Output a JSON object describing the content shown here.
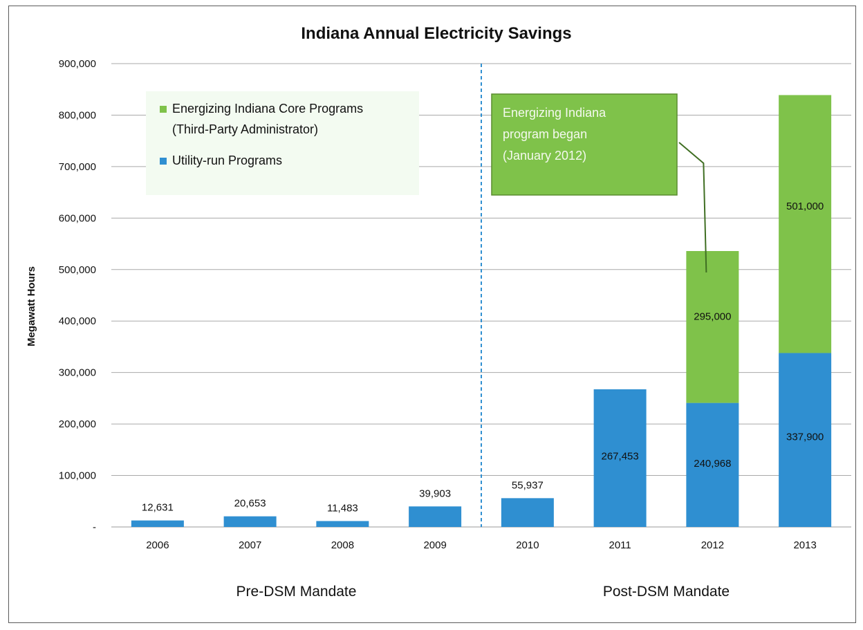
{
  "chart_data": {
    "type": "bar",
    "stacked": true,
    "title": "Indiana Annual Electricity Savings",
    "ylabel": "Megawatt Hours",
    "xlabel": "",
    "ylim": [
      0,
      900000
    ],
    "y_ticks": [
      {
        "value": 0,
        "label": "-"
      },
      {
        "value": 100000,
        "label": "100,000"
      },
      {
        "value": 200000,
        "label": "200,000"
      },
      {
        "value": 300000,
        "label": "300,000"
      },
      {
        "value": 400000,
        "label": "400,000"
      },
      {
        "value": 500000,
        "label": "500,000"
      },
      {
        "value": 600000,
        "label": "600,000"
      },
      {
        "value": 700000,
        "label": "700,000"
      },
      {
        "value": 800000,
        "label": "800,000"
      },
      {
        "value": 900000,
        "label": "900,000"
      }
    ],
    "grid": true,
    "categories": [
      "2006",
      "2007",
      "2008",
      "2009",
      "2010",
      "2011",
      "2012",
      "2013"
    ],
    "series": [
      {
        "name": "Utility-run Programs",
        "color": "#2f8fd1",
        "values": [
          12631,
          20653,
          11483,
          39903,
          55937,
          267453,
          240968,
          337900
        ],
        "labels": [
          "12,631",
          "20,653",
          "11,483",
          "39,903",
          "55,937",
          "267,453",
          "240,968",
          "337,900"
        ]
      },
      {
        "name": "Energizing Indiana Core Programs (Third-Party Administrator)",
        "color": "#7fc24a",
        "values": [
          null,
          null,
          null,
          null,
          null,
          null,
          295000,
          501000
        ],
        "labels": [
          null,
          null,
          null,
          null,
          null,
          null,
          "295,000",
          "501,000"
        ]
      }
    ],
    "legend": {
      "placement": "top-left",
      "items": [
        {
          "line1": "Energizing Indiana Core Programs",
          "line2": "(Third-Party Administrator)",
          "color": "#7fc24a"
        },
        {
          "line1": "Utility-run Programs",
          "line2": "",
          "color": "#2f8fd1"
        }
      ]
    },
    "annotation": {
      "lines": [
        "Energizing Indiana",
        "program began",
        "(January 2012)"
      ],
      "fill": "#7fc24a",
      "text_color": "#f4f9ee",
      "points_to_category": "2012"
    },
    "divider": {
      "between": [
        "2009",
        "2010"
      ],
      "color": "#2f8fd1",
      "style": "dashed"
    },
    "regions": [
      {
        "label": "Pre-DSM Mandate",
        "categories": [
          "2006",
          "2007",
          "2008",
          "2009"
        ]
      },
      {
        "label": "Post-DSM Mandate",
        "categories": [
          "2010",
          "2011",
          "2012",
          "2013"
        ]
      }
    ]
  }
}
